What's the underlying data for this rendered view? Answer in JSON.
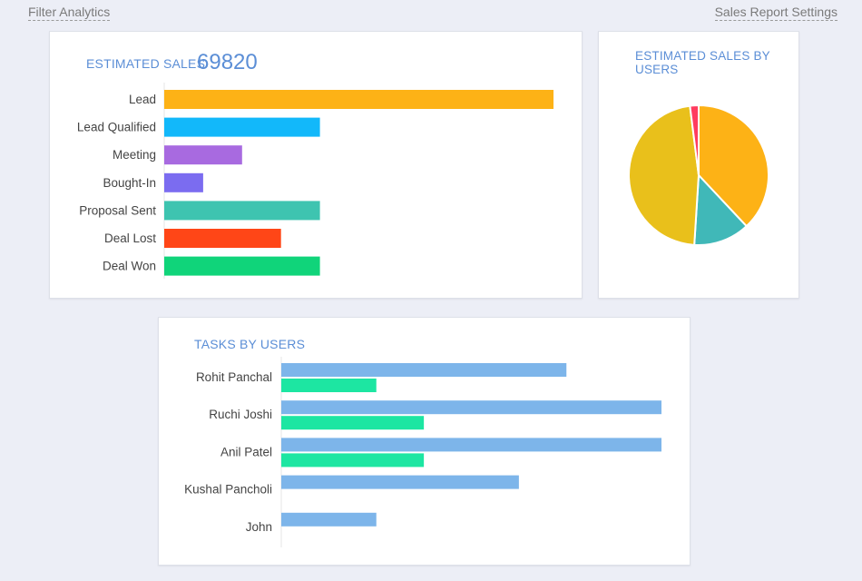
{
  "header": {
    "filter_analytics": "Filter Analytics",
    "sales_report_settings": "Sales Report Settings"
  },
  "estimated_sales": {
    "title": "ESTIMATED SALES",
    "total": "69820"
  },
  "pie_title": "ESTIMATED SALES BY USERS",
  "tasks_title": "TASKS BY USERS",
  "chart_data": [
    {
      "type": "bar",
      "orientation": "horizontal",
      "categories": [
        "Lead",
        "Lead Qualified",
        "Meeting",
        "Bought-In",
        "Proposal Sent",
        "Deal Lost",
        "Deal Won"
      ],
      "values": [
        10,
        4,
        2,
        1,
        4,
        3,
        4
      ],
      "colors": [
        "#fdb216",
        "#12b8fa",
        "#a86ae0",
        "#7b6cf0",
        "#3ec4b0",
        "#ff4617",
        "#10d47a"
      ],
      "xlim": [
        0,
        10
      ],
      "grid": false,
      "legend": "none"
    },
    {
      "type": "pie",
      "values": [
        38,
        13,
        47,
        2
      ],
      "colors": [
        "#fdb216",
        "#40b8b8",
        "#e9c01b",
        "#ff3c5f"
      ],
      "legend": "none"
    },
    {
      "type": "bar",
      "orientation": "horizontal",
      "categories": [
        "Rohit Panchal",
        "Ruchi Joshi",
        "Anil Patel",
        "Kushal Pancholi",
        "John"
      ],
      "series": [
        {
          "values": [
            6,
            8,
            8,
            5,
            2
          ],
          "color": "#7db5ea"
        },
        {
          "values": [
            2,
            3,
            3,
            0,
            0
          ],
          "color": "#1de6a2"
        }
      ],
      "xlim": [
        0,
        8
      ],
      "grid": false,
      "legend": "none"
    }
  ]
}
